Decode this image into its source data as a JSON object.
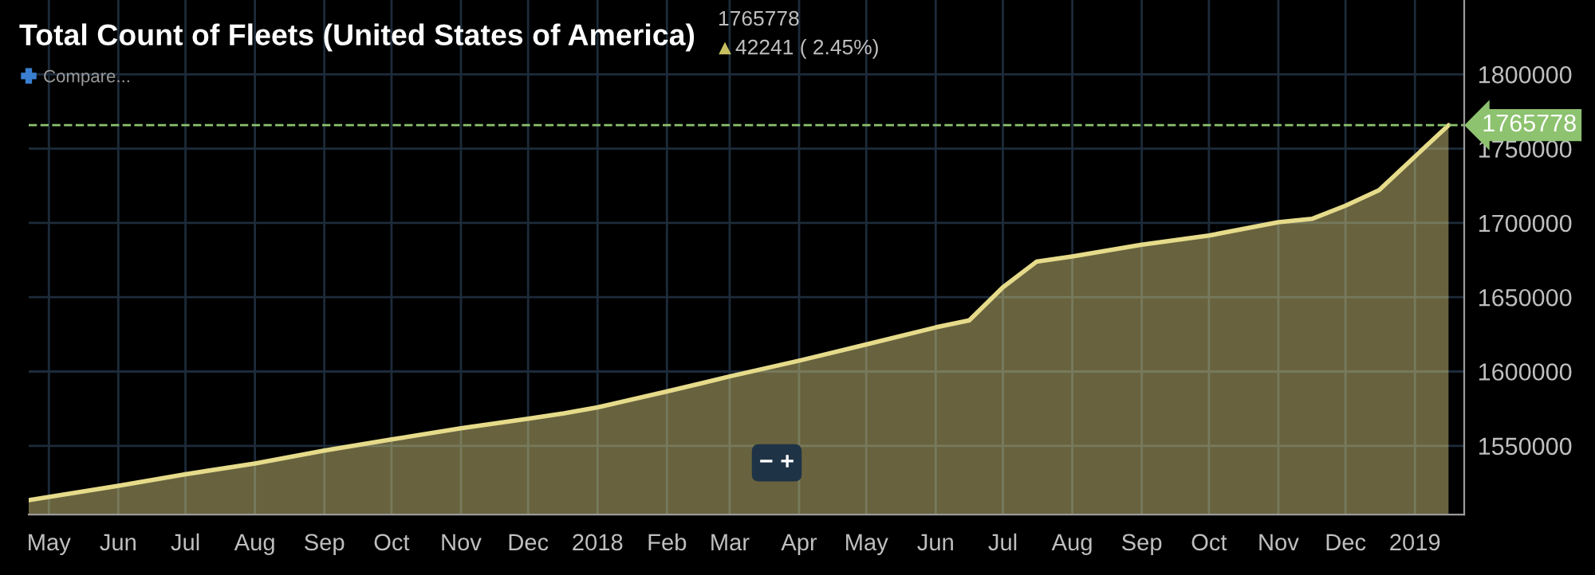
{
  "chart_data": {
    "type": "area",
    "title": "Total Count of Fleets (United States of America)",
    "annotations": [
      "1765778",
      "42241 ( 2.45%)",
      "Compare...",
      "− +"
    ],
    "x": [
      "2017-04-22",
      "2017-06-01",
      "2017-07-01",
      "2017-08-01",
      "2017-09-01",
      "2017-10-01",
      "2017-11-01",
      "2017-12-01",
      "2017-12-17",
      "2018-01-01",
      "2018-02-01",
      "2018-02-16",
      "2018-03-01",
      "2018-04-01",
      "2018-05-01",
      "2018-06-01",
      "2018-06-16",
      "2018-07-01",
      "2018-07-16",
      "2018-08-01",
      "2018-09-01",
      "2018-10-01",
      "2018-11-01",
      "2018-11-16",
      "2018-12-01",
      "2018-12-16",
      "2019-01-16"
    ],
    "series": [
      {
        "color": "#e6db8a",
        "values": [
          1513400,
          1523100,
          1530900,
          1538100,
          1546800,
          1554300,
          1561800,
          1568300,
          1571900,
          1575900,
          1586600,
          1592000,
          1596700,
          1607300,
          1618200,
          1629700,
          1634400,
          1656700,
          1673900,
          1677500,
          1685400,
          1691500,
          1700500,
          1702700,
          1711600,
          1722100,
          1765778
        ]
      }
    ],
    "xlim": [
      "2017-04-22",
      "2019-01-23"
    ],
    "xticks": [
      {
        "value": "2017-05-01",
        "label": "May"
      },
      {
        "value": "2017-06-01",
        "label": "Jun"
      },
      {
        "value": "2017-07-01",
        "label": "Jul"
      },
      {
        "value": "2017-08-01",
        "label": "Aug"
      },
      {
        "value": "2017-09-01",
        "label": "Sep"
      },
      {
        "value": "2017-10-01",
        "label": "Oct"
      },
      {
        "value": "2017-11-01",
        "label": "Nov"
      },
      {
        "value": "2017-12-01",
        "label": "Dec"
      },
      {
        "value": "2018-01-01",
        "label": "2018"
      },
      {
        "value": "2018-02-01",
        "label": "Feb"
      },
      {
        "value": "2018-03-01",
        "label": "Mar"
      },
      {
        "value": "2018-04-01",
        "label": "Apr"
      },
      {
        "value": "2018-05-01",
        "label": "May"
      },
      {
        "value": "2018-06-01",
        "label": "Jun"
      },
      {
        "value": "2018-07-01",
        "label": "Jul"
      },
      {
        "value": "2018-08-01",
        "label": "Aug"
      },
      {
        "value": "2018-09-01",
        "label": "Sep"
      },
      {
        "value": "2018-10-01",
        "label": "Oct"
      },
      {
        "value": "2018-11-01",
        "label": "Nov"
      },
      {
        "value": "2018-12-01",
        "label": "Dec"
      },
      {
        "value": "2019-01-01",
        "label": "2019"
      }
    ],
    "ylim": [
      1503700,
      1850000
    ],
    "yticks": [
      1550000,
      1600000,
      1650000,
      1700000,
      1750000,
      1800000
    ],
    "ref_lines": [
      {
        "axis": "y",
        "value": 1765778,
        "label": "1765778",
        "color": "#8dc26f",
        "line_style": "dashed"
      }
    ],
    "grid": true,
    "legend": false
  }
}
